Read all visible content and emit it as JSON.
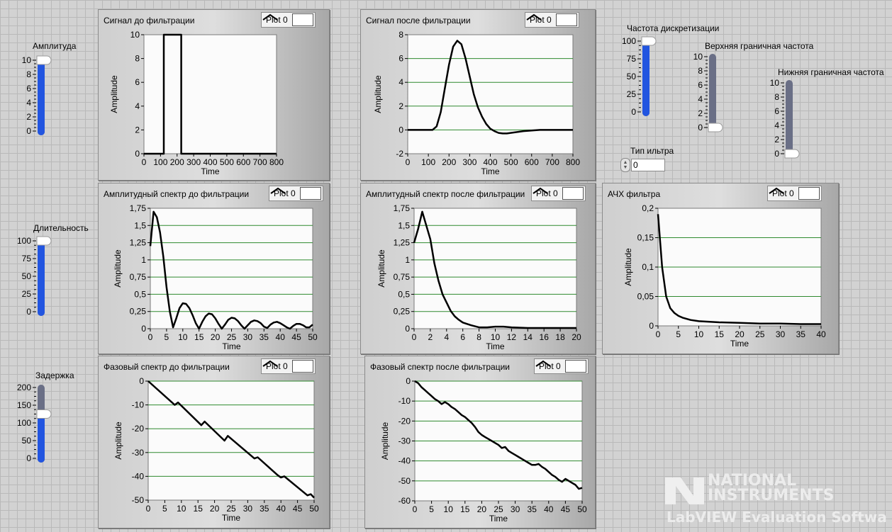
{
  "controls": {
    "amplitude": {
      "label": "Амплитуда",
      "ticks": [
        "10",
        "8",
        "6",
        "4",
        "2",
        "0"
      ],
      "value": 10,
      "min": 0,
      "max": 10
    },
    "duration": {
      "label": "Длительность",
      "ticks": [
        "100",
        "75",
        "50",
        "25",
        "0"
      ],
      "value": 100,
      "min": 0,
      "max": 100
    },
    "delay": {
      "label": "Задержка",
      "ticks": [
        "200",
        "150",
        "100",
        "50",
        "0"
      ],
      "value": 125,
      "min": 0,
      "max": 200
    },
    "sample_rate": {
      "label": "Частота дискретизации",
      "ticks": [
        "100",
        "75",
        "50",
        "25",
        "0"
      ],
      "value": 100,
      "min": 0,
      "max": 100
    },
    "upper_freq": {
      "label": "Верхняя граничная частота",
      "ticks": [
        "10",
        "8",
        "6",
        "4",
        "2",
        "0"
      ],
      "value": 0,
      "min": 0,
      "max": 10
    },
    "lower_freq": {
      "label": "Нижняя граничная частота",
      "ticks": [
        "10",
        "8",
        "6",
        "4",
        "2",
        "0"
      ],
      "value": 0,
      "min": 0,
      "max": 10
    },
    "filter_type": {
      "label": "Тип ильтра",
      "value": "0"
    }
  },
  "watermark": {
    "brand_line1": "NATIONAL",
    "brand_line2": "INSTRUMENTS",
    "product": "LabVIEW",
    "suffix": " Evaluation Softwa"
  },
  "chart_data": [
    {
      "id": "sig_before",
      "type": "line",
      "title": "Сигнал до фильтрации",
      "legend": "Plot 0",
      "xlabel": "Time",
      "ylabel": "Amplitude",
      "xlim": [
        0,
        800
      ],
      "ylim": [
        0,
        10
      ],
      "xticks": [
        0,
        100,
        200,
        300,
        400,
        500,
        600,
        700,
        800
      ],
      "yticks": [
        0,
        2,
        4,
        6,
        8,
        10
      ],
      "yticklabels": [
        "0",
        "2",
        "4",
        "6",
        "8",
        "10"
      ],
      "grid": false,
      "series": [
        {
          "x": [
            0,
            120,
            120,
            225,
            225,
            800
          ],
          "y": [
            0,
            0,
            10,
            10,
            0,
            0
          ]
        }
      ]
    },
    {
      "id": "sig_after",
      "type": "line",
      "title": "Сигнал после фильтрации",
      "legend": "Plot 0",
      "xlabel": "Time",
      "ylabel": "Amplitude",
      "xlim": [
        0,
        800
      ],
      "ylim": [
        -2,
        8
      ],
      "xticks": [
        0,
        100,
        200,
        300,
        400,
        500,
        600,
        700,
        800
      ],
      "yticks": [
        -2,
        0,
        2,
        4,
        6,
        8
      ],
      "yticklabels": [
        "-2",
        "0",
        "2",
        "4",
        "6",
        "8"
      ],
      "grid": true,
      "series": [
        {
          "x": [
            0,
            120,
            140,
            160,
            180,
            200,
            220,
            240,
            260,
            280,
            300,
            320,
            340,
            360,
            380,
            400,
            420,
            440,
            460,
            480,
            520,
            560,
            600,
            640,
            700,
            800
          ],
          "y": [
            0,
            0,
            0.3,
            1.5,
            3.5,
            5.5,
            7.0,
            7.5,
            7.2,
            6.0,
            4.5,
            3.0,
            1.9,
            1.1,
            0.5,
            0.1,
            -0.1,
            -0.25,
            -0.3,
            -0.3,
            -0.2,
            -0.1,
            -0.05,
            0,
            0,
            0
          ]
        }
      ]
    },
    {
      "id": "amp_before",
      "type": "line",
      "title": "Амплитудный спектр до фильтрации",
      "legend": "Plot 0",
      "xlabel": "Time",
      "ylabel": "Amplitude",
      "xlim": [
        0,
        50
      ],
      "ylim": [
        0,
        1.75
      ],
      "xticks": [
        0,
        5,
        10,
        15,
        20,
        25,
        30,
        35,
        40,
        45,
        50
      ],
      "yticks": [
        0,
        0.25,
        0.5,
        0.75,
        1,
        1.25,
        1.5,
        1.75
      ],
      "yticklabels": [
        "0",
        "0,25",
        "0,5",
        "0,75",
        "1",
        "1,25",
        "1,5",
        "1,75"
      ],
      "grid": true,
      "series": [
        {
          "x": [
            0,
            1,
            2,
            3,
            4,
            5,
            6,
            7,
            8,
            9,
            10,
            11,
            12,
            13,
            14,
            15,
            16,
            17,
            18,
            19,
            20,
            21,
            22,
            23,
            24,
            25,
            26,
            27,
            28,
            29,
            30,
            31,
            32,
            33,
            34,
            35,
            36,
            37,
            38,
            39,
            40,
            41,
            42,
            43,
            44,
            45,
            46,
            47,
            48,
            49,
            50
          ],
          "y": [
            1.2,
            1.7,
            1.62,
            1.4,
            1.05,
            0.6,
            0.25,
            0.02,
            0.15,
            0.3,
            0.37,
            0.36,
            0.3,
            0.2,
            0.08,
            0,
            0.1,
            0.18,
            0.22,
            0.21,
            0.15,
            0.07,
            0,
            0.06,
            0.13,
            0.16,
            0.15,
            0.11,
            0.05,
            0,
            0.05,
            0.1,
            0.12,
            0.11,
            0.08,
            0.03,
            0.01,
            0.06,
            0.09,
            0.1,
            0.08,
            0.05,
            0.02,
            0,
            0.04,
            0.07,
            0.07,
            0.05,
            0.02,
            0.02,
            0.06
          ]
        }
      ]
    },
    {
      "id": "amp_after",
      "type": "line",
      "title": "Амплитудный спектр после фильтрации",
      "legend": "Plot 0",
      "xlabel": "Time",
      "ylabel": "Amplitude",
      "xlim": [
        0,
        20
      ],
      "ylim": [
        0,
        1.75
      ],
      "xticks": [
        0,
        2,
        4,
        6,
        8,
        10,
        12,
        14,
        16,
        18,
        20
      ],
      "yticks": [
        0,
        0.25,
        0.5,
        0.75,
        1,
        1.25,
        1.5,
        1.75
      ],
      "yticklabels": [
        "0",
        "0,25",
        "0,5",
        "0,75",
        "1",
        "1,25",
        "1,5",
        "1,75"
      ],
      "grid": true,
      "series": [
        {
          "x": [
            0,
            0.5,
            1,
            1.5,
            2,
            2.5,
            3,
            3.5,
            4,
            4.5,
            5,
            5.5,
            6,
            7,
            8,
            9,
            10,
            11,
            12,
            14,
            16,
            18,
            20
          ],
          "y": [
            1.25,
            1.45,
            1.7,
            1.5,
            1.3,
            0.95,
            0.7,
            0.5,
            0.38,
            0.26,
            0.18,
            0.13,
            0.09,
            0.05,
            0.02,
            0.02,
            0.03,
            0.03,
            0.02,
            0.01,
            0.01,
            0.01,
            0.01
          ]
        }
      ]
    },
    {
      "id": "afc",
      "type": "line",
      "title": "АЧХ фильтра",
      "legend": "Plot 0",
      "xlabel": "Time",
      "ylabel": "Amplitude",
      "xlim": [
        0,
        40
      ],
      "ylim": [
        0,
        0.2
      ],
      "xticks": [
        0,
        5,
        10,
        15,
        20,
        25,
        30,
        35,
        40
      ],
      "yticks": [
        0,
        0.05,
        0.1,
        0.15,
        0.2
      ],
      "yticklabels": [
        "0",
        "0,05",
        "0,1",
        "0,15",
        "0,2"
      ],
      "grid": true,
      "series": [
        {
          "x": [
            0,
            1,
            2,
            3,
            4,
            5,
            6,
            8,
            10,
            15,
            20,
            25,
            30,
            35,
            40
          ],
          "y": [
            0.19,
            0.1,
            0.05,
            0.03,
            0.022,
            0.017,
            0.014,
            0.01,
            0.008,
            0.006,
            0.005,
            0.004,
            0.004,
            0.003,
            0.003
          ]
        }
      ]
    },
    {
      "id": "phase_before",
      "type": "line",
      "title": "Фазовый спектр до фильтрации",
      "legend": "Plot 0",
      "xlabel": "Time",
      "ylabel": "Amplitude",
      "xlim": [
        0,
        50
      ],
      "ylim": [
        -50,
        0
      ],
      "xticks": [
        0,
        5,
        10,
        15,
        20,
        25,
        30,
        35,
        40,
        45,
        50
      ],
      "yticks": [
        -50,
        -40,
        -30,
        -20,
        -10,
        0
      ],
      "yticklabels": [
        "-50",
        "-40",
        "-30",
        "-20",
        "-10",
        "0"
      ],
      "grid": true,
      "series": [
        {
          "x": [
            0,
            8,
            9,
            16,
            17,
            23,
            24,
            32,
            33,
            39,
            40,
            41,
            48,
            49,
            50
          ],
          "y": [
            0,
            -10,
            -9,
            -18.5,
            -17,
            -25,
            -23,
            -32.5,
            -32,
            -39.5,
            -40.5,
            -40,
            -48,
            -47.5,
            -49
          ]
        }
      ]
    },
    {
      "id": "phase_after",
      "type": "line",
      "title": "Фазовый спектр после фильтрации",
      "legend": "Plot 0",
      "xlabel": "Time",
      "ylabel": "Amplitude",
      "xlim": [
        0,
        50
      ],
      "ylim": [
        -60,
        0
      ],
      "xticks": [
        0,
        5,
        10,
        15,
        20,
        25,
        30,
        35,
        40,
        45,
        50
      ],
      "yticks": [
        -60,
        -50,
        -40,
        -30,
        -20,
        -10,
        0
      ],
      "yticklabels": [
        "-60",
        "-50",
        "-40",
        "-30",
        "-20",
        "-10",
        "0"
      ],
      "grid": true,
      "series": [
        {
          "x": [
            0,
            1,
            2,
            3,
            4,
            5,
            6,
            7,
            8,
            9,
            10,
            11,
            12,
            13,
            14,
            15,
            16,
            17,
            18,
            19,
            20,
            21,
            22,
            23,
            24,
            25,
            26,
            27,
            28,
            29,
            30,
            31,
            32,
            33,
            34,
            35,
            36,
            37,
            38,
            39,
            40,
            41,
            42,
            43,
            44,
            45,
            46,
            47,
            48,
            49,
            50
          ],
          "y": [
            0,
            -1,
            -3,
            -4.5,
            -6,
            -7.5,
            -9,
            -10,
            -11.5,
            -10.5,
            -11.5,
            -13,
            -14,
            -15.5,
            -17,
            -18,
            -19.5,
            -21,
            -23,
            -25.5,
            -27,
            -28,
            -29,
            -30,
            -31,
            -32,
            -33.5,
            -33,
            -35,
            -36,
            -37,
            -38,
            -39,
            -40,
            -41,
            -42,
            -42,
            -41.5,
            -43,
            -44,
            -45.5,
            -47,
            -48,
            -49.5,
            -50.5,
            -49,
            -50,
            -51,
            -52,
            -54,
            -53.5
          ]
        }
      ]
    }
  ]
}
